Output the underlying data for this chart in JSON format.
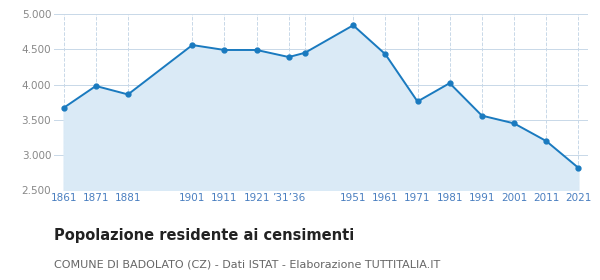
{
  "years": [
    1861,
    1871,
    1881,
    1901,
    1911,
    1921,
    1931,
    1936,
    1951,
    1961,
    1971,
    1981,
    1991,
    2001,
    2011,
    2021
  ],
  "population": [
    3670,
    3980,
    3860,
    4560,
    4490,
    4490,
    4390,
    4450,
    4840,
    4430,
    3760,
    4020,
    3560,
    3450,
    3200,
    2820
  ],
  "ylim": [
    2500,
    5000
  ],
  "yticks": [
    2500,
    3000,
    3500,
    4000,
    4500,
    5000
  ],
  "line_color": "#1a7abf",
  "fill_color": "#daeaf6",
  "marker_color": "#1a7abf",
  "grid_color": "#c8d8e8",
  "background_color": "#ffffff",
  "title": "Popolazione residente ai censimenti",
  "subtitle": "COMUNE DI BADOLATO (CZ) - Dati ISTAT - Elaborazione TUTTITALIA.IT",
  "title_fontsize": 10.5,
  "subtitle_fontsize": 8.0,
  "tick_label_color": "#4a7fc0",
  "ytick_label_color": "#888888"
}
